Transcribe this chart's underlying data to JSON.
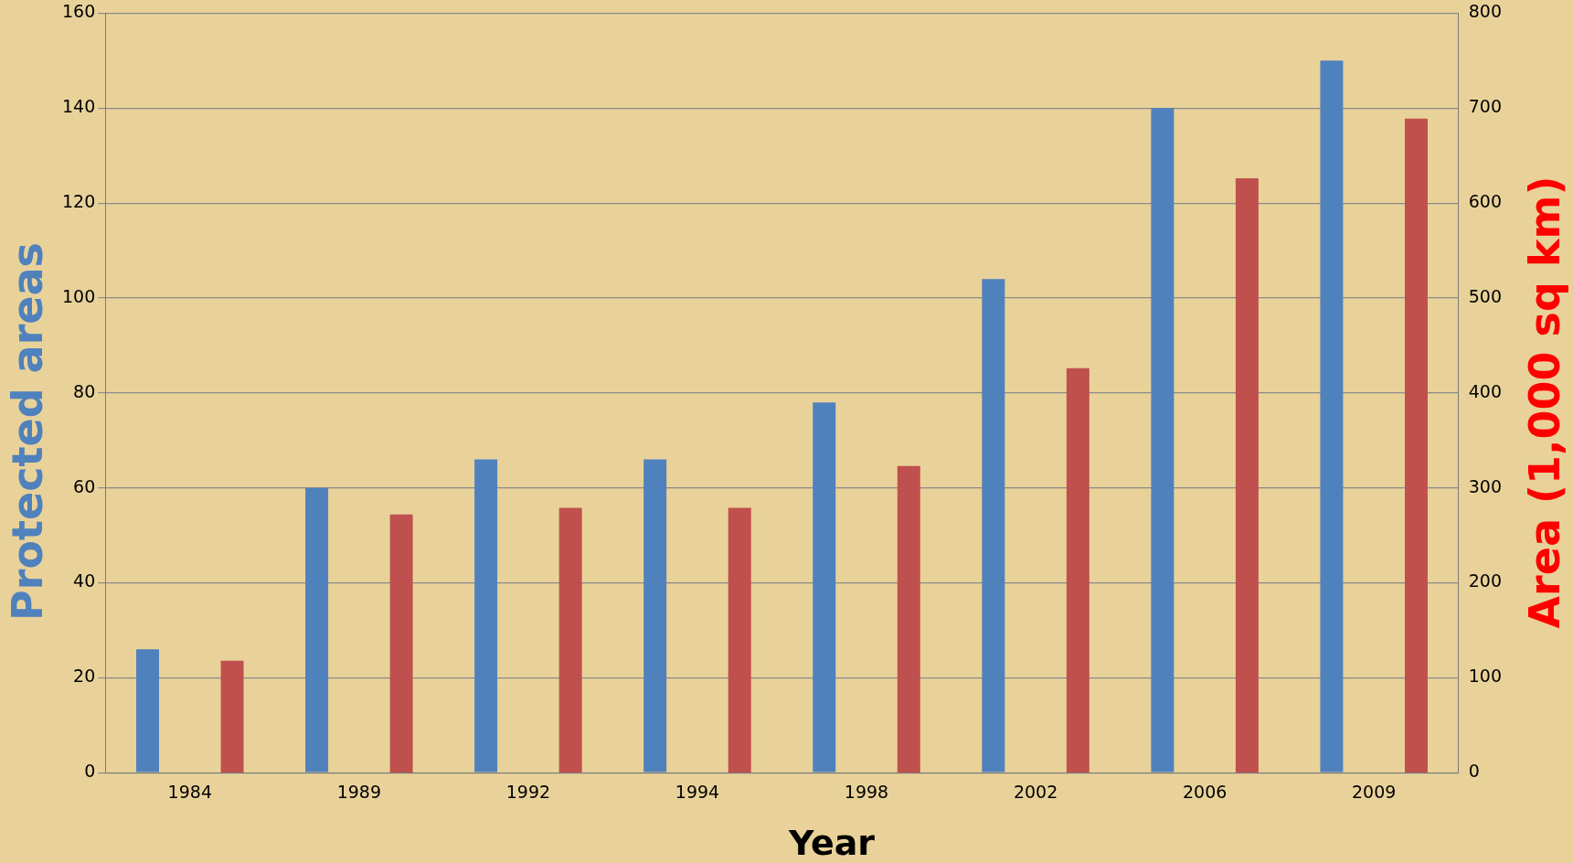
{
  "chart_data": {
    "type": "bar",
    "xlabel": "Year",
    "ylabel": "Protected areas",
    "y2label": "Area (1,000 sq km)",
    "categories": [
      "1984",
      "1989",
      "1992",
      "1994",
      "1998",
      "2002",
      "2006",
      "2009"
    ],
    "series": [
      {
        "color": "#4f81bd",
        "values": [
          26,
          60,
          66,
          66,
          78,
          104,
          140,
          150
        ]
      },
      {
        "color": "#c0504d",
        "axis": "y2",
        "values": [
          118,
          272,
          279,
          279,
          323,
          426,
          626,
          689
        ]
      }
    ],
    "ylim": [
      0,
      160
    ],
    "yticks": [
      0,
      20,
      40,
      60,
      80,
      100,
      120,
      140,
      160
    ],
    "y2lim": [
      0,
      800
    ],
    "y2ticks": [
      0,
      100,
      200,
      300,
      400,
      500,
      600,
      700,
      800
    ],
    "grid": "y",
    "legend": false
  }
}
